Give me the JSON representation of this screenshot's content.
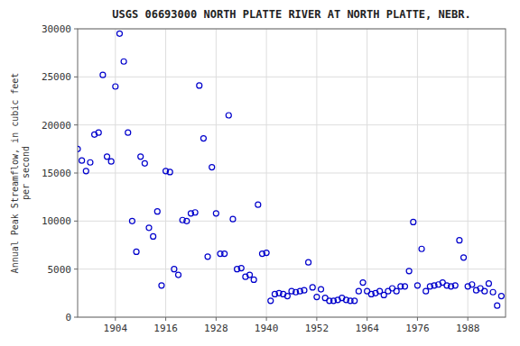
{
  "chart_data": {
    "type": "scatter",
    "title": "USGS 06693000 NORTH PLATTE RIVER AT NORTH PLATTE, NEBR.",
    "y_label": "Annual Peak Streamflow, in cubic feet\nper second",
    "x": [
      1895,
      1896,
      1897,
      1898,
      1899,
      1900,
      1901,
      1902,
      1903,
      1904,
      1905,
      1906,
      1907,
      1908,
      1909,
      1910,
      1911,
      1912,
      1913,
      1914,
      1915,
      1916,
      1917,
      1918,
      1919,
      1920,
      1921,
      1922,
      1923,
      1924,
      1925,
      1926,
      1927,
      1928,
      1929,
      1930,
      1931,
      1932,
      1933,
      1934,
      1935,
      1936,
      1937,
      1938,
      1939,
      1940,
      1941,
      1942,
      1943,
      1944,
      1945,
      1946,
      1947,
      1948,
      1949,
      1950,
      1951,
      1952,
      1953,
      1954,
      1955,
      1956,
      1957,
      1958,
      1959,
      1960,
      1961,
      1962,
      1963,
      1964,
      1965,
      1966,
      1967,
      1968,
      1969,
      1970,
      1971,
      1972,
      1973,
      1974,
      1975,
      1976,
      1977,
      1978,
      1979,
      1980,
      1981,
      1982,
      1983,
      1984,
      1985,
      1986,
      1987,
      1988,
      1989,
      1990,
      1991,
      1992,
      1993,
      1994,
      1995,
      1996
    ],
    "values": [
      17500,
      16300,
      15200,
      16100,
      19000,
      19200,
      25200,
      16700,
      16200,
      24000,
      29500,
      26600,
      19200,
      10000,
      6800,
      16700,
      16000,
      9300,
      8400,
      11000,
      3300,
      15200,
      15100,
      5000,
      4400,
      10100,
      10000,
      10800,
      10900,
      24100,
      18600,
      6300,
      15600,
      10800,
      6600,
      6600,
      21000,
      10200,
      5000,
      5100,
      4200,
      4400,
      3900,
      11700,
      6600,
      6700,
      1700,
      2400,
      2500,
      2400,
      2200,
      2700,
      2600,
      2700,
      2800,
      5700,
      3100,
      2100,
      2900,
      2000,
      1700,
      1700,
      1800,
      2000,
      1800,
      1700,
      1700,
      2700,
      3600,
      2700,
      2400,
      2500,
      2700,
      2300,
      2700,
      3000,
      2700,
      3200,
      3200,
      4800,
      9900,
      3300,
      7100,
      2700,
      3200,
      3300,
      3400,
      3600,
      3300,
      3200,
      3300,
      8000,
      6200,
      3200,
      3400,
      2800,
      3000,
      2700,
      3500,
      2600,
      1200,
      2200
    ],
    "xlim": [
      1895,
      1997
    ],
    "ylim": [
      0,
      30000
    ],
    "xticks": [
      1904,
      1916,
      1928,
      1940,
      1952,
      1964,
      1976,
      1988
    ],
    "yticks": [
      0,
      5000,
      10000,
      15000,
      20000,
      25000,
      30000
    ],
    "color": "#0000cc",
    "marker": "open-circle",
    "grid": true
  }
}
